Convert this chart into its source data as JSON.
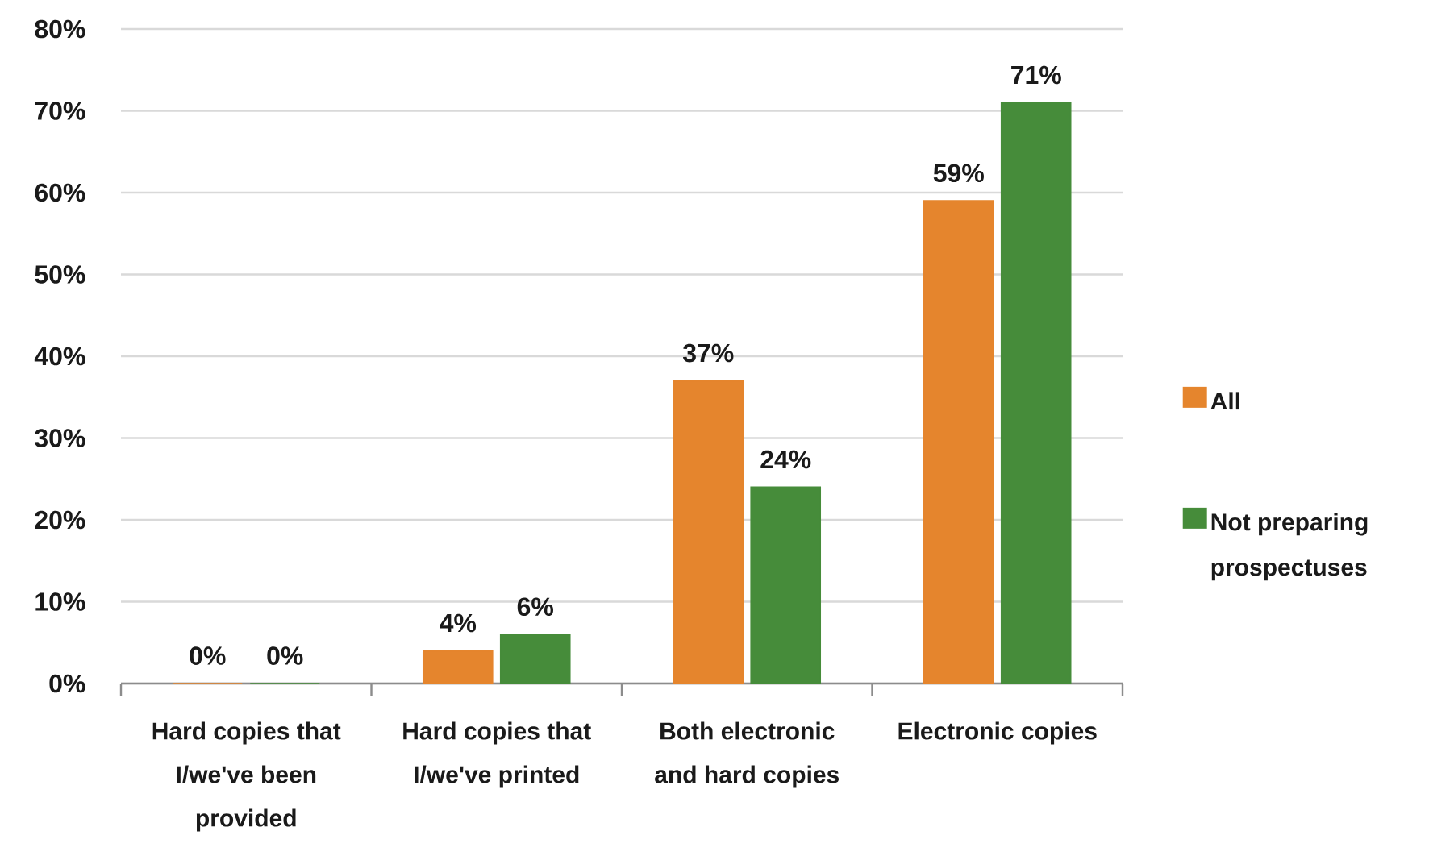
{
  "chart_data": {
    "type": "bar",
    "categories": [
      "Hard copies that I/we've been provided",
      "Hard copies that I/we've printed",
      "Both electronic and hard copies",
      "Electronic copies"
    ],
    "series": [
      {
        "name": "All",
        "color": "#e5852d",
        "values": [
          0,
          4,
          37,
          59
        ],
        "value_labels": [
          "0%",
          "4%",
          "37%",
          "59%"
        ]
      },
      {
        "name": "Not preparing prospectuses",
        "color": "#468c3a",
        "values": [
          0,
          6,
          24,
          71
        ],
        "value_labels": [
          "0%",
          "6%",
          "24%",
          "71%"
        ]
      }
    ],
    "ylim": [
      0,
      80
    ],
    "yticks": [
      {
        "value": 0,
        "label": "0%"
      },
      {
        "value": 10,
        "label": "10%"
      },
      {
        "value": 20,
        "label": "20%"
      },
      {
        "value": 30,
        "label": "30%"
      },
      {
        "value": 40,
        "label": "40%"
      },
      {
        "value": 50,
        "label": "50%"
      },
      {
        "value": 60,
        "label": "60%"
      },
      {
        "value": 70,
        "label": "70%"
      },
      {
        "value": 80,
        "label": "80%"
      }
    ],
    "grid": "y",
    "legend": "right"
  }
}
